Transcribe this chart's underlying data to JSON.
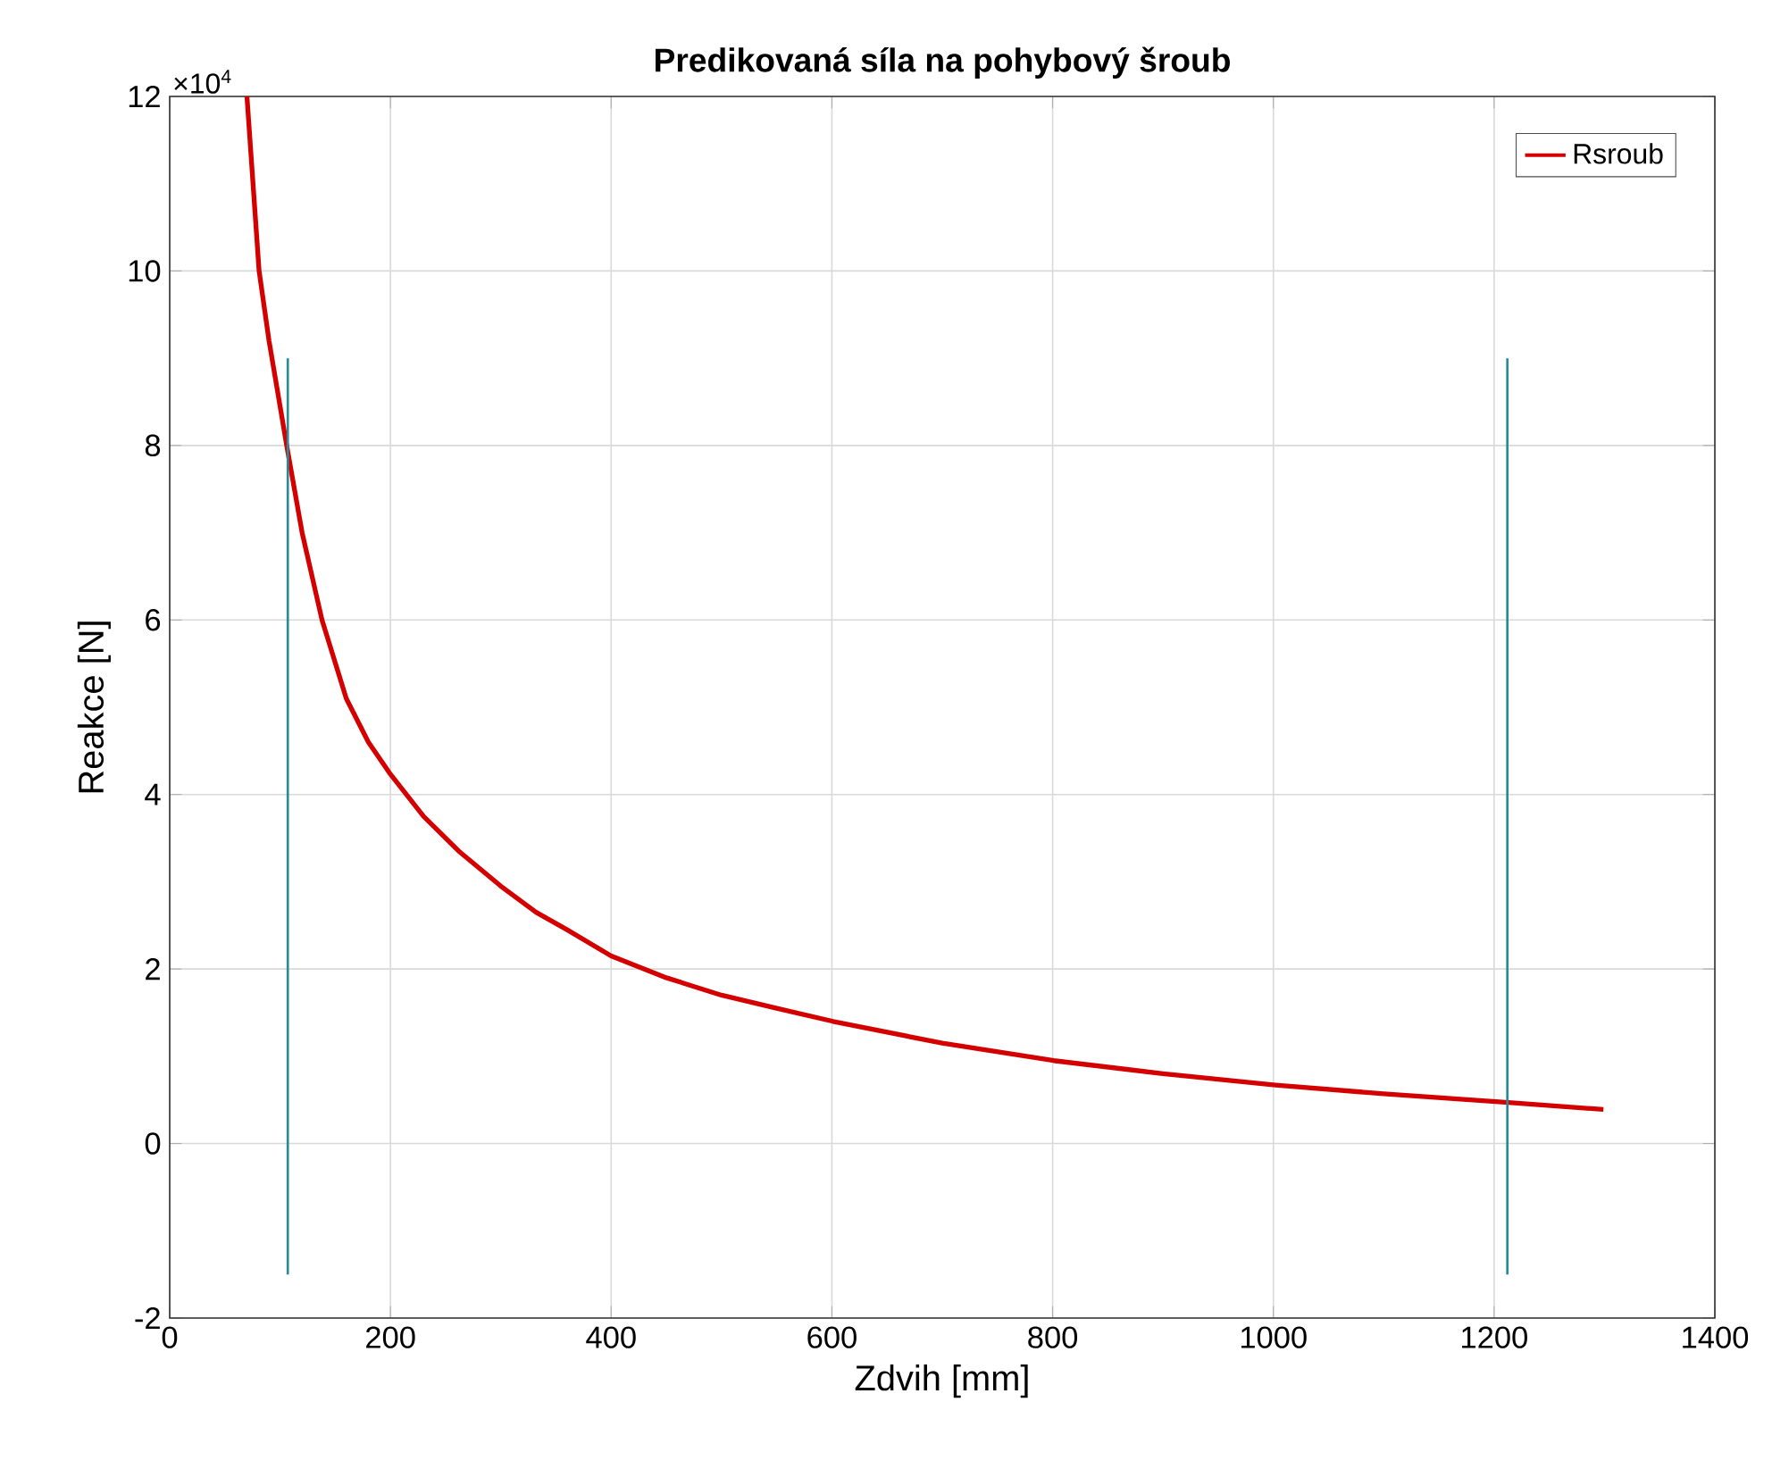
{
  "chart_data": {
    "type": "line",
    "title": "Predikovaná síla na pohybový šroub",
    "xlabel": "Zdvih [mm]",
    "ylabel": "Reakce [N]",
    "annotations": [
      "×10$^{4}$"
    ],
    "xlim": [
      0,
      1400
    ],
    "ylim": [
      -2,
      12
    ],
    "xticks": [
      0,
      200,
      400,
      600,
      800,
      1000,
      1200,
      1400
    ],
    "yticks": [
      -2,
      0,
      2,
      4,
      6,
      8,
      10,
      12
    ],
    "grid": true,
    "legend": "top right",
    "series": [
      {
        "name": "Rsroub",
        "color": "#d40000",
        "x": [
          70,
          81,
          90,
          106,
          120,
          138,
          160,
          180,
          199,
          230,
          262,
          300,
          332,
          360,
          400,
          450,
          500,
          550,
          601,
          700,
          801,
          900,
          1002,
          1100,
          1213,
          1299
        ],
        "values": [
          12,
          10,
          9.2,
          8,
          7,
          6,
          5.1,
          4.6,
          4.25,
          3.75,
          3.35,
          2.95,
          2.65,
          2.45,
          2.15,
          1.9,
          1.7,
          1.55,
          1.4,
          1.15,
          0.95,
          0.8,
          0.67,
          0.57,
          0.47,
          0.39
        ]
      },
      {
        "color": "#2a8a9a",
        "x": [
          107,
          107
        ],
        "values": [
          9,
          -1.5
        ]
      },
      {
        "color": "#2a8a9a",
        "x": [
          1212,
          1212
        ],
        "values": [
          9,
          -1.5
        ]
      }
    ]
  }
}
